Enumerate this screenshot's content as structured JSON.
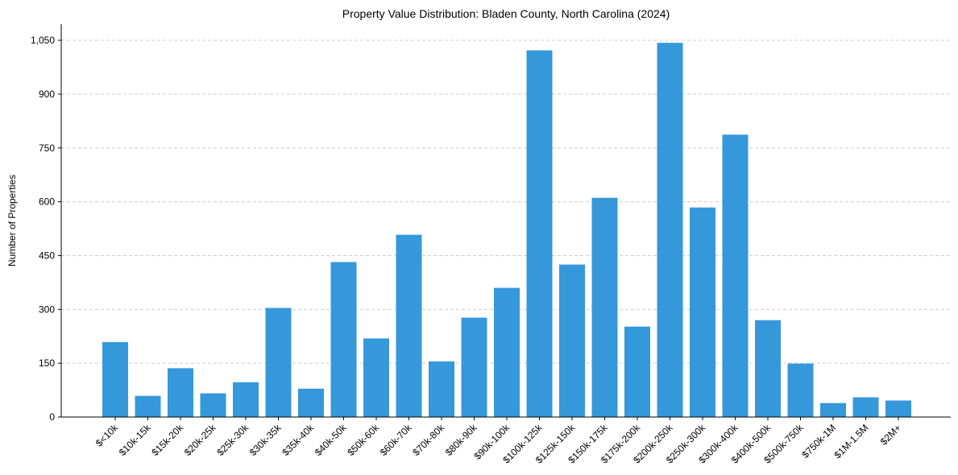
{
  "chart_data": {
    "type": "bar",
    "title": "Property Value Distribution: Bladen County, North Carolina (2024)",
    "xlabel": "",
    "ylabel": "Number of Properties",
    "ylim": [
      0,
      1095
    ],
    "yticks": [
      0,
      150,
      300,
      450,
      600,
      750,
      900,
      1050
    ],
    "ytick_labels": [
      "0",
      "150",
      "300",
      "450",
      "600",
      "750",
      "900",
      "1,050"
    ],
    "grid": "y-dashed",
    "bar_color": "#3498db",
    "categories": [
      "$<10k",
      "$10k-15k",
      "$15k-20k",
      "$20k-25k",
      "$25k-30k",
      "$30k-35k",
      "$35k-40k",
      "$40k-50k",
      "$50k-60k",
      "$60k-70k",
      "$70k-80k",
      "$80k-90k",
      "$90k-100k",
      "$100k-125k",
      "$125k-150k",
      "$150k-175k",
      "$175k-200k",
      "$200k-250k",
      "$250k-300k",
      "$300k-400k",
      "$400k-500k",
      "$500k-750k",
      "$750k-1M",
      "$1M-1.5M",
      "$2M+"
    ],
    "values": [
      209,
      59,
      136,
      66,
      97,
      304,
      79,
      432,
      219,
      508,
      155,
      277,
      360,
      1022,
      425,
      611,
      252,
      1043,
      584,
      787,
      270,
      149,
      39,
      55,
      46
    ]
  }
}
